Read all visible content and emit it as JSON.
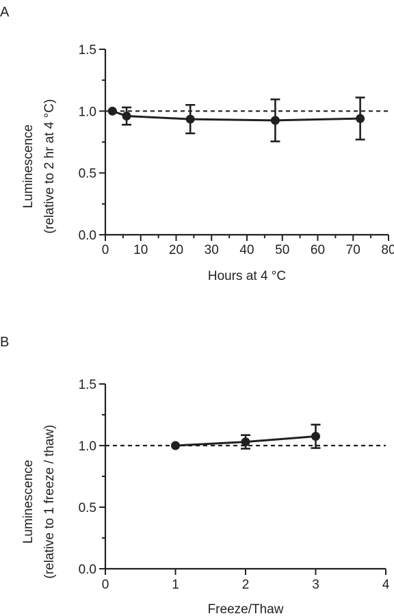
{
  "chart_data": [
    {
      "panel": "A",
      "type": "line",
      "xlabel": "Hours at 4 °C",
      "ylabel_line1": "Luminescence",
      "ylabel_line2": "(relative to 2 hr at 4 °C)",
      "xlim": [
        0,
        80
      ],
      "ylim": [
        0,
        1.5
      ],
      "xticks": [
        0,
        10,
        20,
        30,
        40,
        50,
        60,
        70,
        80
      ],
      "xminor": [
        5,
        15,
        25,
        35,
        45,
        55,
        65,
        75
      ],
      "yticks": [
        0.0,
        0.5,
        1.0,
        1.5
      ],
      "ytick_labels": [
        "0.0",
        "0.5",
        "1.0",
        "1.5"
      ],
      "yminor": [
        0.25,
        0.75,
        1.25
      ],
      "reference_line": 1.0,
      "points": [
        {
          "x": 2,
          "y": 1.0,
          "err": 0
        },
        {
          "x": 6,
          "y": 0.96,
          "err": 0.07
        },
        {
          "x": 24,
          "y": 0.935,
          "err": 0.115
        },
        {
          "x": 48,
          "y": 0.925,
          "err": 0.17
        },
        {
          "x": 72,
          "y": 0.94,
          "err": 0.17
        }
      ]
    },
    {
      "panel": "B",
      "type": "line",
      "xlabel": "Freeze/Thaw",
      "ylabel_line1": "Luminescence",
      "ylabel_line2": "(relative to 1 freeze / thaw)",
      "xlim": [
        0,
        4
      ],
      "ylim": [
        0,
        1.5
      ],
      "xticks": [
        0,
        1,
        2,
        3,
        4
      ],
      "xminor": [],
      "yticks": [
        0.0,
        0.5,
        1.0,
        1.5
      ],
      "ytick_labels": [
        "0.0",
        "0.5",
        "1.0",
        "1.5"
      ],
      "yminor": [
        0.25,
        0.75,
        1.25
      ],
      "reference_line": 1.0,
      "points": [
        {
          "x": 1,
          "y": 1.0,
          "err": 0
        },
        {
          "x": 2,
          "y": 1.03,
          "err": 0.055
        },
        {
          "x": 3,
          "y": 1.075,
          "err": 0.095
        }
      ]
    }
  ]
}
